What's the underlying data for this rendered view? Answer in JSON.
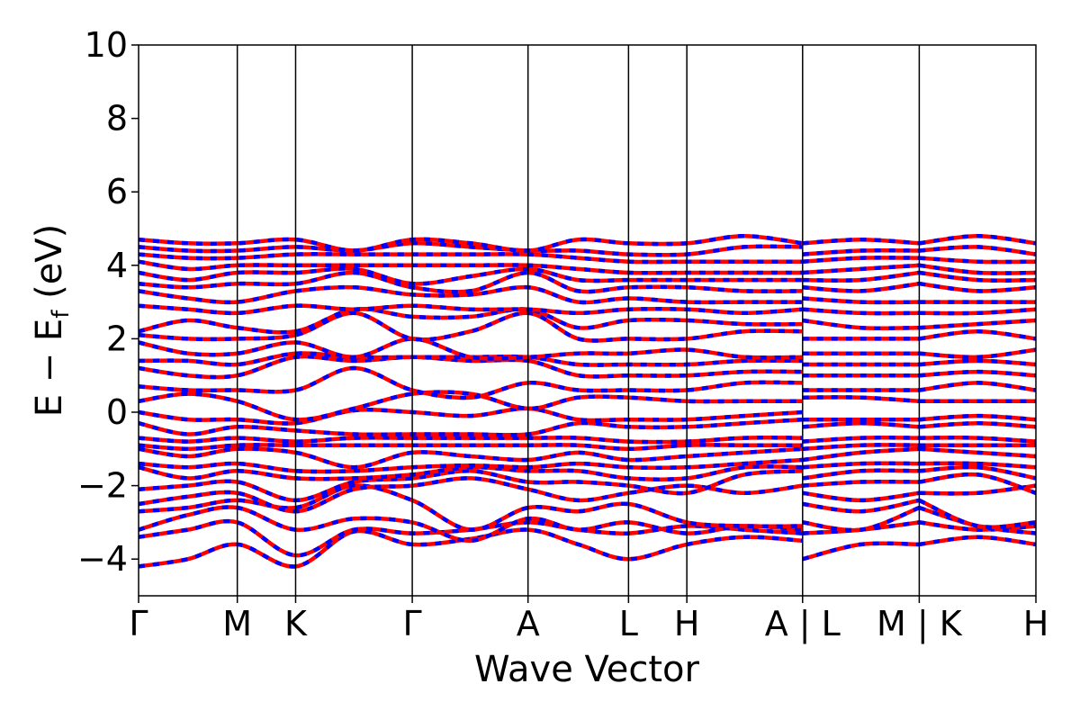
{
  "chart_data": {
    "type": "line",
    "title": "",
    "xlabel": "Wave Vector",
    "ylabel": "E − E",
    "ylabel_subscript": "f",
    "ylabel_unit": " (eV)",
    "ylim": [
      -5,
      10
    ],
    "yticks": [
      {
        "value": -4,
        "label": "−4"
      },
      {
        "value": -2,
        "label": "−2"
      },
      {
        "value": 0,
        "label": "0"
      },
      {
        "value": 2,
        "label": "2"
      },
      {
        "value": 4,
        "label": "4"
      },
      {
        "value": 6,
        "label": "6"
      },
      {
        "value": 8,
        "label": "8"
      },
      {
        "value": 10,
        "label": "10"
      }
    ],
    "grid": false,
    "legend": "none",
    "series_colors": {
      "spin_up": "#ff0000",
      "spin_down": "#0000ff"
    },
    "kpoints": [
      {
        "label": "Γ",
        "pos": 0.0
      },
      {
        "label": "M",
        "pos": 0.11
      },
      {
        "label": "K",
        "pos": 0.175
      },
      {
        "label": "Γ",
        "pos": 0.305
      },
      {
        "label": "A",
        "pos": 0.434
      },
      {
        "label": "L",
        "pos": 0.546
      },
      {
        "label": "H",
        "pos": 0.611
      },
      {
        "label": "A | L",
        "pos": 0.74
      },
      {
        "label": "M | K",
        "pos": 0.87
      },
      {
        "label": "H",
        "pos": 1.0
      }
    ],
    "path_segment_breaks": [
      0.74,
      0.87
    ],
    "bands": [
      [
        -4.2,
        -4.0,
        -3.6,
        -4.2,
        -3.25,
        -3.6,
        -3.45,
        -3.2,
        -3.6,
        -4.0,
        -3.6,
        -3.4,
        -3.5
      ],
      [
        -3.4,
        -3.2,
        -3.0,
        -3.9,
        -3.2,
        -3.3,
        -3.2,
        -3.0,
        -3.2,
        -3.3,
        -3.1,
        -3.2,
        -3.3
      ],
      [
        -3.2,
        -2.8,
        -2.6,
        -3.2,
        -2.9,
        -3.0,
        -3.5,
        -2.9,
        -3.2,
        -3.0,
        -3.3,
        -3.1,
        -3.2
      ],
      [
        -2.7,
        -2.6,
        -2.4,
        -2.6,
        -2.0,
        -2.4,
        -3.2,
        -2.6,
        -2.7,
        -2.5,
        -3.0,
        -3.1,
        -3.1
      ],
      [
        -2.5,
        -2.3,
        -2.2,
        -2.7,
        -2.1,
        -2.0,
        -1.8,
        -2.1,
        -2.4,
        -2.2,
        -2.0,
        -2.2,
        -2.0
      ],
      [
        -2.1,
        -2.0,
        -1.9,
        -2.4,
        -1.9,
        -1.8,
        -1.6,
        -1.9,
        -1.9,
        -2.0,
        -2.2,
        -1.7,
        -1.6
      ],
      [
        -1.5,
        -1.8,
        -1.6,
        -1.8,
        -1.8,
        -1.7,
        -1.5,
        -1.6,
        -1.6,
        -1.8,
        -1.8,
        -1.5,
        -1.5
      ],
      [
        -1.4,
        -1.5,
        -1.4,
        -1.6,
        -1.6,
        -1.5,
        -1.45,
        -1.5,
        -1.4,
        -1.5,
        -1.5,
        -1.4,
        -1.3
      ],
      [
        -1.0,
        -1.2,
        -1.0,
        -1.1,
        -1.5,
        -1.1,
        -1.2,
        -1.3,
        -1.1,
        -1.3,
        -1.2,
        -1.1,
        -1.0
      ],
      [
        -0.9,
        -1.0,
        -0.9,
        -0.9,
        -0.9,
        -0.9,
        -0.9,
        -0.9,
        -0.9,
        -1.0,
        -0.9,
        -0.9,
        -0.9
      ],
      [
        -0.7,
        -0.8,
        -0.7,
        -0.8,
        -0.7,
        -0.7,
        -0.7,
        -0.7,
        -0.7,
        -0.8,
        -0.8,
        -0.7,
        -0.7
      ],
      [
        -0.3,
        -0.6,
        -0.4,
        -0.5,
        -0.6,
        -0.6,
        -0.6,
        -0.6,
        -0.3,
        -0.4,
        -0.4,
        -0.3,
        -0.2
      ],
      [
        0.0,
        -0.2,
        -0.2,
        -0.3,
        0.05,
        0.0,
        -0.1,
        0.1,
        -0.2,
        -0.2,
        -0.2,
        -0.1,
        0.0
      ],
      [
        0.3,
        0.5,
        0.3,
        -0.2,
        0.1,
        0.5,
        0.5,
        0.1,
        0.4,
        0.4,
        0.3,
        0.3,
        0.3
      ],
      [
        0.7,
        0.6,
        0.6,
        0.6,
        1.2,
        0.6,
        0.4,
        0.8,
        0.6,
        0.6,
        0.6,
        0.8,
        0.8
      ],
      [
        1.2,
        1.0,
        1.0,
        1.5,
        1.4,
        1.5,
        1.4,
        1.4,
        1.0,
        1.0,
        1.0,
        1.1,
        1.1
      ],
      [
        1.4,
        1.4,
        1.3,
        1.6,
        1.5,
        1.5,
        1.5,
        1.5,
        1.3,
        1.3,
        1.3,
        1.4,
        1.4
      ],
      [
        1.9,
        1.6,
        1.6,
        1.9,
        1.5,
        2.0,
        1.5,
        1.5,
        1.6,
        1.6,
        1.7,
        1.5,
        1.5
      ],
      [
        2.1,
        2.0,
        2.0,
        2.1,
        2.7,
        2.0,
        2.2,
        2.7,
        2.0,
        2.0,
        2.0,
        2.2,
        2.2
      ],
      [
        2.2,
        2.5,
        2.3,
        2.2,
        2.8,
        2.6,
        2.6,
        2.8,
        2.3,
        2.5,
        2.5,
        2.4,
        2.4
      ],
      [
        2.9,
        2.8,
        2.7,
        2.9,
        2.8,
        2.9,
        2.8,
        2.8,
        2.7,
        2.8,
        2.8,
        2.7,
        2.8
      ],
      [
        3.3,
        3.1,
        3.0,
        3.3,
        3.4,
        3.2,
        3.2,
        3.4,
        3.0,
        3.1,
        3.0,
        3.0,
        3.0
      ],
      [
        3.5,
        3.4,
        3.5,
        3.5,
        3.8,
        3.4,
        3.3,
        3.8,
        3.3,
        3.4,
        3.4,
        3.3,
        3.3
      ],
      [
        3.8,
        3.6,
        3.8,
        3.8,
        3.9,
        3.5,
        3.7,
        3.9,
        3.6,
        3.6,
        3.6,
        3.6,
        3.6
      ],
      [
        4.1,
        3.9,
        4.0,
        4.0,
        4.0,
        4.0,
        4.0,
        4.0,
        3.9,
        3.8,
        3.8,
        3.8,
        3.8
      ],
      [
        4.3,
        4.2,
        4.2,
        4.3,
        4.3,
        4.3,
        4.3,
        4.3,
        4.2,
        4.1,
        4.1,
        4.1,
        4.1
      ],
      [
        4.5,
        4.4,
        4.4,
        4.5,
        4.4,
        4.6,
        4.5,
        4.4,
        4.4,
        4.3,
        4.3,
        4.5,
        4.5
      ],
      [
        4.7,
        4.6,
        4.6,
        4.7,
        4.4,
        4.7,
        4.6,
        4.4,
        4.7,
        4.6,
        4.6,
        4.8,
        4.6
      ]
    ],
    "band_x": [
      0.0,
      0.055,
      0.11,
      0.175,
      0.24,
      0.305,
      0.37,
      0.434,
      0.49,
      0.546,
      0.611,
      0.675,
      0.74
    ]
  }
}
